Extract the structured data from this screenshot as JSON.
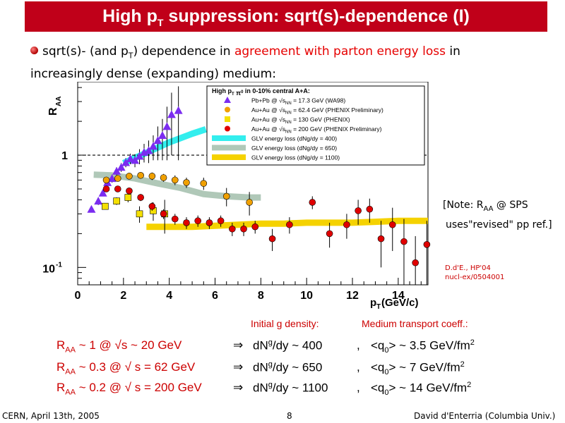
{
  "header": {
    "title_main": "High p",
    "title_sub": "T",
    "title_rest": " suppression: sqrt(s)-dependence (I)"
  },
  "bullet": {
    "part1": "sqrt(s)- (and p",
    "part1_sub": "T",
    "part2": ") dependence in ",
    "highlight": "agreement with parton energy loss",
    "part3": " in increasingly dense (expanding) medium:"
  },
  "note": {
    "line1_a": "[Note: R",
    "line1_sub": "AA",
    "line1_b": " @ SPS",
    "line2": "uses\"revised\" pp ref.]"
  },
  "reference": {
    "line1": "D.d'E., HP'04",
    "line2": "nucl-ex/0504001"
  },
  "columns": {
    "left": "Initial g density:",
    "right": "Medium transport coeff.:"
  },
  "rows": [
    {
      "r": "R",
      "sub": "AA",
      "val": " ~ 1 @ √s ~ 20 GeV",
      "arrow": "⇒",
      "dn": "dN",
      "sup": "g",
      "dn2": "/dy ~ 400",
      "comma": ",",
      "q": "<q",
      "qsub": "0",
      "q2": "> ~ 3.5 GeV/fm",
      "qsup": "2"
    },
    {
      "r": "R",
      "sub": "AA",
      "val": " ~ 0.3 @ √ s = 62 GeV",
      "arrow": "⇒",
      "dn": "dN",
      "sup": "g",
      "dn2": "/dy ~ 650",
      "comma": ",",
      "q": "<q",
      "qsub": "0",
      "q2": "> ~ 7 GeV/fm",
      "qsup": "2"
    },
    {
      "r": "R",
      "sub": "AA",
      "val": " ~ 0.2 @ √ s = 200 GeV",
      "arrow": "⇒",
      "dn": "dN",
      "sup": "g",
      "dn2": "/dy ~ 1100",
      "comma": ",",
      "q": "<q",
      "qsub": "0",
      "q2": "> ~ 14 GeV/fm",
      "qsup": "2"
    }
  ],
  "footer": {
    "left": "CERN, April 13th, 2005",
    "center": "8",
    "right": "David d'Enterria (Columbia Univ.)"
  },
  "colors": {
    "title_bg": "#c00019",
    "accent": "#e60000"
  },
  "chart_data": {
    "type": "scatter",
    "ylabel": "R",
    "ylabel_sub": "AA",
    "xlabel": "p",
    "xlabel_sub": "T",
    "xlabel_unit": " (GeV/c)",
    "x_ticks": [
      "0",
      "2",
      "4",
      "6",
      "8",
      "10",
      "12",
      "14"
    ],
    "y_tick_1": "1",
    "y_tick_01": "10",
    "y_tick_01_sup": "-1",
    "xlim": [
      0,
      15.3
    ],
    "ylim": [
      0.07,
      4.5
    ],
    "yscale": "log",
    "legend": {
      "title": "High p",
      "title_sub": "T",
      "title_rest": " π",
      "title_sup": "0",
      "title_end": " in 0-10% central A+A:",
      "entries": [
        {
          "sys": "Pb+Pb @ ",
          "snn": "s",
          "nn": "NN",
          "rest": " = 17.3 GeV (WA98)",
          "marker": "triangle",
          "color": "#7b2cf0"
        },
        {
          "sys": "Au+Au @ ",
          "snn": "s",
          "nn": "NN",
          "rest": " = 62.4 GeV (PHENIX Preliminary)",
          "marker": "circle",
          "color": "#f0a000"
        },
        {
          "sys": "Au+Au @ ",
          "snn": "s",
          "nn": "NN",
          "rest": " = 130 GeV (PHENIX)",
          "marker": "square",
          "color": "#f5e000"
        },
        {
          "sys": "Au+Au @ ",
          "snn": "s",
          "nn": "NN",
          "rest": " = 200 GeV (PHENIX Preliminary)",
          "marker": "circle",
          "color": "#e00000"
        },
        {
          "sys": "GLV energy loss (dN",
          "snn": "",
          "nn": "",
          "rest": "g/dy = 400)",
          "marker": "band",
          "color": "#33eeee"
        },
        {
          "sys": "GLV energy loss (dN",
          "snn": "",
          "nn": "",
          "rest": "g/dy = 650)",
          "marker": "band",
          "color": "#b0c8b8"
        },
        {
          "sys": "GLV energy loss (dN",
          "snn": "",
          "nn": "",
          "rest": "g/dy = 1100)",
          "marker": "band",
          "color": "#f5d200"
        }
      ]
    },
    "reference_line": 1,
    "series": [
      {
        "name": "Pb+Pb @ sNN = 17.3 GeV (WA98)",
        "marker": "triangle",
        "color": "#7b2cf0",
        "points": [
          [
            0.6,
            0.33,
            0.02
          ],
          [
            0.9,
            0.39,
            0.03
          ],
          [
            1.1,
            0.46,
            0.03
          ],
          [
            1.3,
            0.57,
            0.04
          ],
          [
            1.5,
            0.62,
            0.05
          ],
          [
            1.7,
            0.72,
            0.06
          ],
          [
            1.9,
            0.78,
            0.07
          ],
          [
            2.1,
            0.86,
            0.08
          ],
          [
            2.3,
            0.93,
            0.1
          ],
          [
            2.5,
            0.9,
            0.12
          ],
          [
            2.7,
            0.98,
            0.15
          ],
          [
            2.9,
            1.06,
            0.2
          ],
          [
            3.1,
            1.1,
            0.25
          ],
          [
            3.3,
            1.2,
            0.3
          ],
          [
            3.5,
            1.35,
            0.45
          ],
          [
            3.7,
            1.5,
            0.6
          ],
          [
            3.9,
            1.8,
            0.9
          ],
          [
            4.1,
            2.3,
            1.3
          ],
          [
            4.4,
            2.5,
            1.6
          ]
        ]
      },
      {
        "name": "Au+Au @ sNN = 62.4 GeV (PHENIX Preliminary)",
        "marker": "circle",
        "color": "#f0a000",
        "points": [
          [
            1.25,
            0.6,
            0.03
          ],
          [
            1.75,
            0.62,
            0.03
          ],
          [
            2.25,
            0.65,
            0.03
          ],
          [
            2.75,
            0.66,
            0.04
          ],
          [
            3.25,
            0.65,
            0.05
          ],
          [
            3.75,
            0.63,
            0.05
          ],
          [
            4.25,
            0.6,
            0.06
          ],
          [
            4.75,
            0.57,
            0.06
          ],
          [
            5.5,
            0.56,
            0.07
          ],
          [
            6.5,
            0.43,
            0.08
          ],
          [
            7.5,
            0.38,
            0.09
          ]
        ]
      },
      {
        "name": "Au+Au @ sNN = 130 GeV (PHENIX)",
        "marker": "square",
        "color": "#f5e000",
        "points": [
          [
            1.2,
            0.35,
            0.02
          ],
          [
            1.7,
            0.39,
            0.03
          ],
          [
            2.2,
            0.42,
            0.04
          ],
          [
            2.7,
            0.3,
            0.05
          ],
          [
            3.3,
            0.32,
            0.06
          ],
          [
            3.8,
            0.3,
            0.1
          ]
        ]
      },
      {
        "name": "Au+Au @ sNN = 200 GeV (PHENIX Preliminary)",
        "marker": "circle",
        "color": "#e00000",
        "points": [
          [
            1.25,
            0.5,
            0.03
          ],
          [
            1.75,
            0.5,
            0.03
          ],
          [
            2.25,
            0.48,
            0.03
          ],
          [
            2.75,
            0.42,
            0.03
          ],
          [
            3.25,
            0.35,
            0.03
          ],
          [
            3.75,
            0.3,
            0.03
          ],
          [
            4.25,
            0.27,
            0.03
          ],
          [
            4.75,
            0.25,
            0.03
          ],
          [
            5.25,
            0.26,
            0.03
          ],
          [
            5.75,
            0.25,
            0.03
          ],
          [
            6.25,
            0.26,
            0.03
          ],
          [
            6.75,
            0.22,
            0.03
          ],
          [
            7.25,
            0.22,
            0.03
          ],
          [
            7.75,
            0.23,
            0.03
          ],
          [
            8.5,
            0.18,
            0.04
          ],
          [
            9.25,
            0.24,
            0.04
          ],
          [
            10.25,
            0.38,
            0.05
          ],
          [
            11.0,
            0.2,
            0.05
          ],
          [
            11.75,
            0.24,
            0.06
          ],
          [
            12.25,
            0.32,
            0.08
          ],
          [
            12.75,
            0.33,
            0.08
          ],
          [
            13.25,
            0.18,
            0.08
          ],
          [
            13.75,
            0.24,
            0.1
          ],
          [
            14.25,
            0.17,
            0.1
          ],
          [
            14.75,
            0.11,
            0.08
          ],
          [
            15.25,
            0.16,
            0.1
          ]
        ]
      }
    ],
    "bands": [
      {
        "name": "GLV energy loss (dNg/dy = 400)",
        "color": "#33eeee",
        "points": [
          [
            2.0,
            0.85
          ],
          [
            3.0,
            1.05
          ],
          [
            4.0,
            1.3
          ],
          [
            5.0,
            1.55
          ],
          [
            5.6,
            1.7
          ]
        ]
      },
      {
        "name": "GLV energy loss (dNg/dy = 650)",
        "color": "#b0c8b8",
        "points": [
          [
            0.7,
            0.67
          ],
          [
            1.5,
            0.66
          ],
          [
            2.5,
            0.62
          ],
          [
            3.5,
            0.56
          ],
          [
            4.5,
            0.51
          ],
          [
            5.5,
            0.45
          ],
          [
            6.5,
            0.43
          ],
          [
            7.5,
            0.42
          ],
          [
            8.0,
            0.42
          ]
        ]
      },
      {
        "name": "GLV energy loss (dNg/dy = 1100)",
        "color": "#f5d200",
        "points": [
          [
            3.0,
            0.23
          ],
          [
            4.0,
            0.23
          ],
          [
            5.0,
            0.23
          ],
          [
            6.0,
            0.235
          ],
          [
            7.0,
            0.24
          ],
          [
            8.0,
            0.245
          ],
          [
            9.0,
            0.245
          ],
          [
            10.0,
            0.25
          ],
          [
            11.0,
            0.25
          ],
          [
            12.0,
            0.25
          ],
          [
            13.0,
            0.255
          ],
          [
            14.0,
            0.26
          ],
          [
            15.3,
            0.26
          ]
        ]
      }
    ]
  }
}
